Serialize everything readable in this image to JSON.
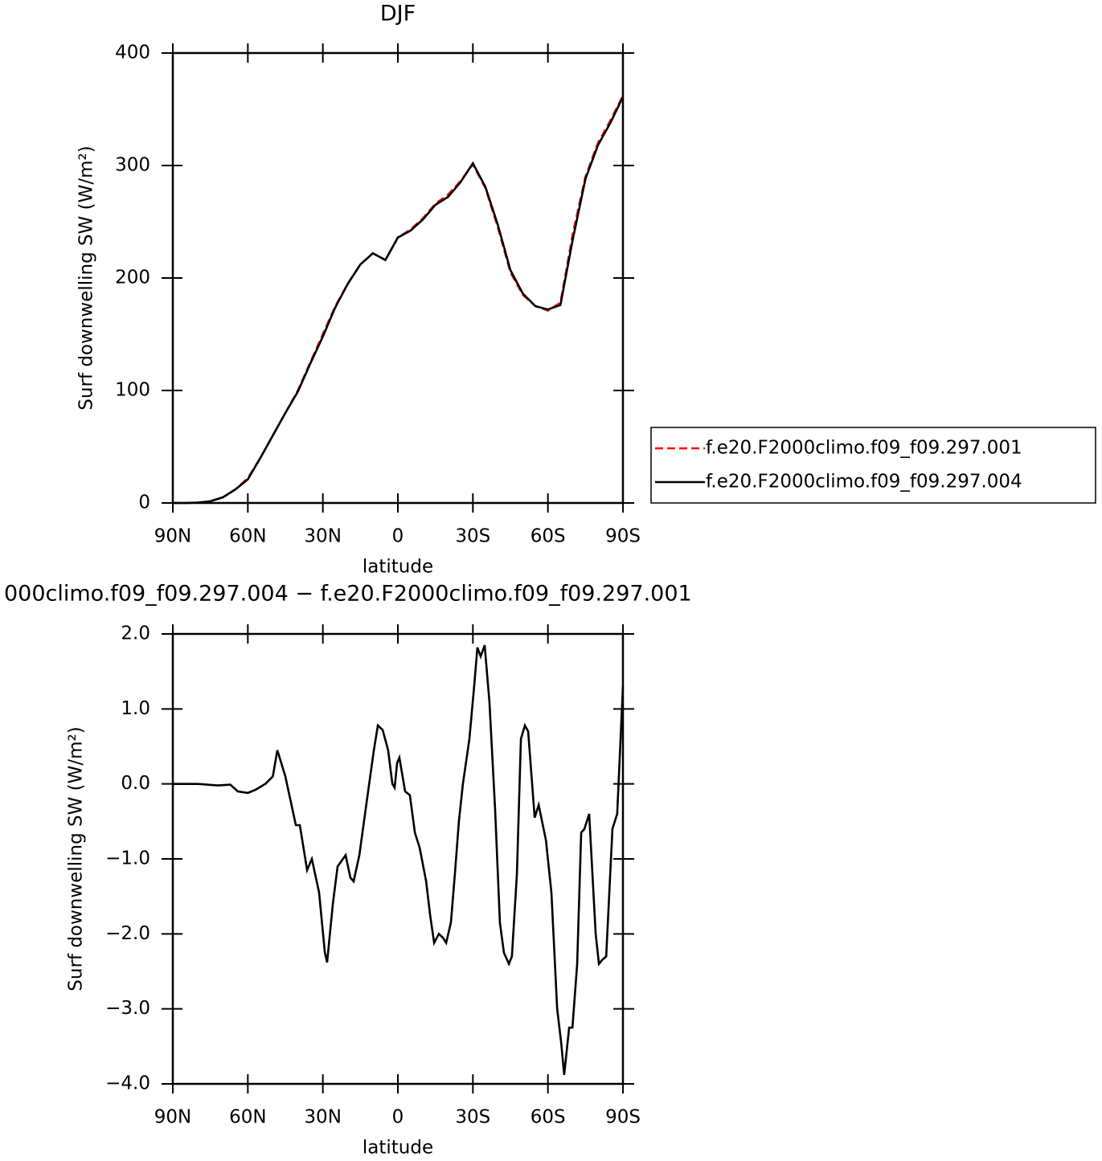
{
  "chart_data": [
    {
      "type": "line",
      "title": "DJF",
      "xlabel": "latitude",
      "ylabel": "Surf downwelling SW (W/m²)",
      "x": [
        90,
        85,
        80,
        75,
        70,
        65,
        60,
        55,
        50,
        45,
        40,
        35,
        30,
        25,
        20,
        15,
        10,
        5,
        0,
        -5,
        -10,
        -15,
        -20,
        -25,
        -30,
        -35,
        -40,
        -45,
        -50,
        -55,
        -60,
        -65,
        -70,
        -75,
        -80,
        -85,
        -90
      ],
      "series": [
        {
          "name": "f.e20.F2000climo.f09_f09.297.001",
          "color": "#ff0000",
          "style": "dashed",
          "values": [
            0,
            0,
            0.3,
            1.5,
            5,
            12,
            22,
            40,
            60,
            80,
            100,
            125,
            150,
            175,
            195,
            212,
            222,
            216,
            236,
            243,
            253,
            266,
            274,
            286,
            301,
            280,
            245,
            205,
            185,
            175,
            171,
            178,
            240,
            290,
            320,
            340,
            362
          ]
        },
        {
          "name": "f.e20.F2000climo.f09_f09.297.004",
          "color": "#000000",
          "style": "solid",
          "values": [
            0,
            0,
            0.3,
            1.5,
            5,
            12,
            21,
            40,
            60,
            80,
            99,
            124,
            148,
            174,
            195,
            212,
            222,
            216,
            236,
            242,
            252,
            265,
            272,
            285,
            302,
            281,
            247,
            207,
            186,
            175,
            172,
            176,
            235,
            288,
            318,
            338,
            361
          ]
        }
      ],
      "xlim": [
        90,
        -90
      ],
      "xticks": [
        {
          "value": 90,
          "label": "90N"
        },
        {
          "value": 60,
          "label": "60N"
        },
        {
          "value": 30,
          "label": "30N"
        },
        0,
        {
          "value": -30,
          "label": "30S"
        },
        {
          "value": -60,
          "label": "60S"
        },
        {
          "value": -90,
          "label": "90S"
        }
      ],
      "ylim": [
        0,
        400
      ],
      "yticks": [
        0,
        100,
        200,
        300,
        400
      ],
      "legend": "right"
    },
    {
      "type": "line",
      "title": "000climo.f09_f09.297.004 − f.e20.F2000climo.f09_f09.297.001",
      "xlabel": "latitude",
      "ylabel": "Surf downwelling SW (W/m²)",
      "x": [
        90,
        80,
        72,
        67,
        64,
        60,
        57,
        53,
        50,
        48.2,
        45,
        40.8,
        39.2,
        36.3,
        34.4,
        31.5,
        29.2,
        28.3,
        26,
        24.1,
        20.9,
        19,
        17.7,
        15.4,
        11.9,
        9.6,
        8,
        6.1,
        3.9,
        2.2,
        1.3,
        0.3,
        -0.6,
        -2.9,
        -4.8,
        -6.8,
        -8.7,
        -11.3,
        -12.9,
        -14.5,
        -16.4,
        -18,
        -19.3,
        -21.2,
        -22.8,
        -24.4,
        -26,
        -28.6,
        -30.5,
        -31.8,
        -33.1,
        -34.7,
        -36.6,
        -38.9,
        -40.8,
        -42.4,
        -44.4,
        -45.6,
        -47.6,
        -49.2,
        -50.8,
        -52.1,
        -54.7,
        -56.3,
        -59.2,
        -61.4,
        -63.7,
        -65.3,
        -66.5,
        -68.5,
        -69.8,
        -71.7,
        -73.3,
        -74.6,
        -76.5,
        -79.1,
        -80.4,
        -81.6,
        -83.3,
        -85.8,
        -87.7,
        -90
      ],
      "series": [
        {
          "color": "#000000",
          "style": "solid",
          "values": [
            0,
            0,
            -0.02,
            -0.01,
            -0.1,
            -0.12,
            -0.08,
            0,
            0.1,
            0.45,
            0.1,
            -0.55,
            -0.55,
            -1.15,
            -1.0,
            -1.45,
            -2.25,
            -2.38,
            -1.6,
            -1.1,
            -0.95,
            -1.25,
            -1.3,
            -0.95,
            -0.1,
            0.45,
            0.78,
            0.72,
            0.45,
            0.0,
            -0.05,
            0.28,
            0.35,
            -0.1,
            -0.15,
            -0.65,
            -0.85,
            -1.3,
            -1.75,
            -2.12,
            -2.0,
            -2.05,
            -2.12,
            -1.85,
            -1.2,
            -0.5,
            0.0,
            0.6,
            1.3,
            1.82,
            1.7,
            1.85,
            1.1,
            -0.35,
            -1.85,
            -2.25,
            -2.4,
            -2.3,
            -1.2,
            0.6,
            0.78,
            0.7,
            -0.45,
            -0.28,
            -0.75,
            -1.45,
            -3.0,
            -3.45,
            -3.88,
            -3.25,
            -3.25,
            -2.4,
            -0.65,
            -0.6,
            -0.4,
            -2.0,
            -2.4,
            -2.35,
            -2.3,
            -0.6,
            -0.4,
            1.3
          ]
        }
      ],
      "xlim": [
        90,
        -90
      ],
      "xticks": [
        {
          "value": 90,
          "label": "90N"
        },
        {
          "value": 60,
          "label": "60N"
        },
        {
          "value": 30,
          "label": "30N"
        },
        0,
        {
          "value": -30,
          "label": "30S"
        },
        {
          "value": -60,
          "label": "60S"
        },
        {
          "value": -90,
          "label": "90S"
        }
      ],
      "ylim": [
        -4,
        2
      ],
      "yticks": [
        {
          "value": -4,
          "label": "−4.0"
        },
        {
          "value": -3,
          "label": "−3.0"
        },
        {
          "value": -2,
          "label": "−2.0"
        },
        {
          "value": -1,
          "label": "−1.0"
        },
        {
          "value": 0,
          "label": "0.0"
        },
        {
          "value": 1,
          "label": "1.0"
        },
        {
          "value": 2,
          "label": "2.0"
        }
      ]
    }
  ]
}
